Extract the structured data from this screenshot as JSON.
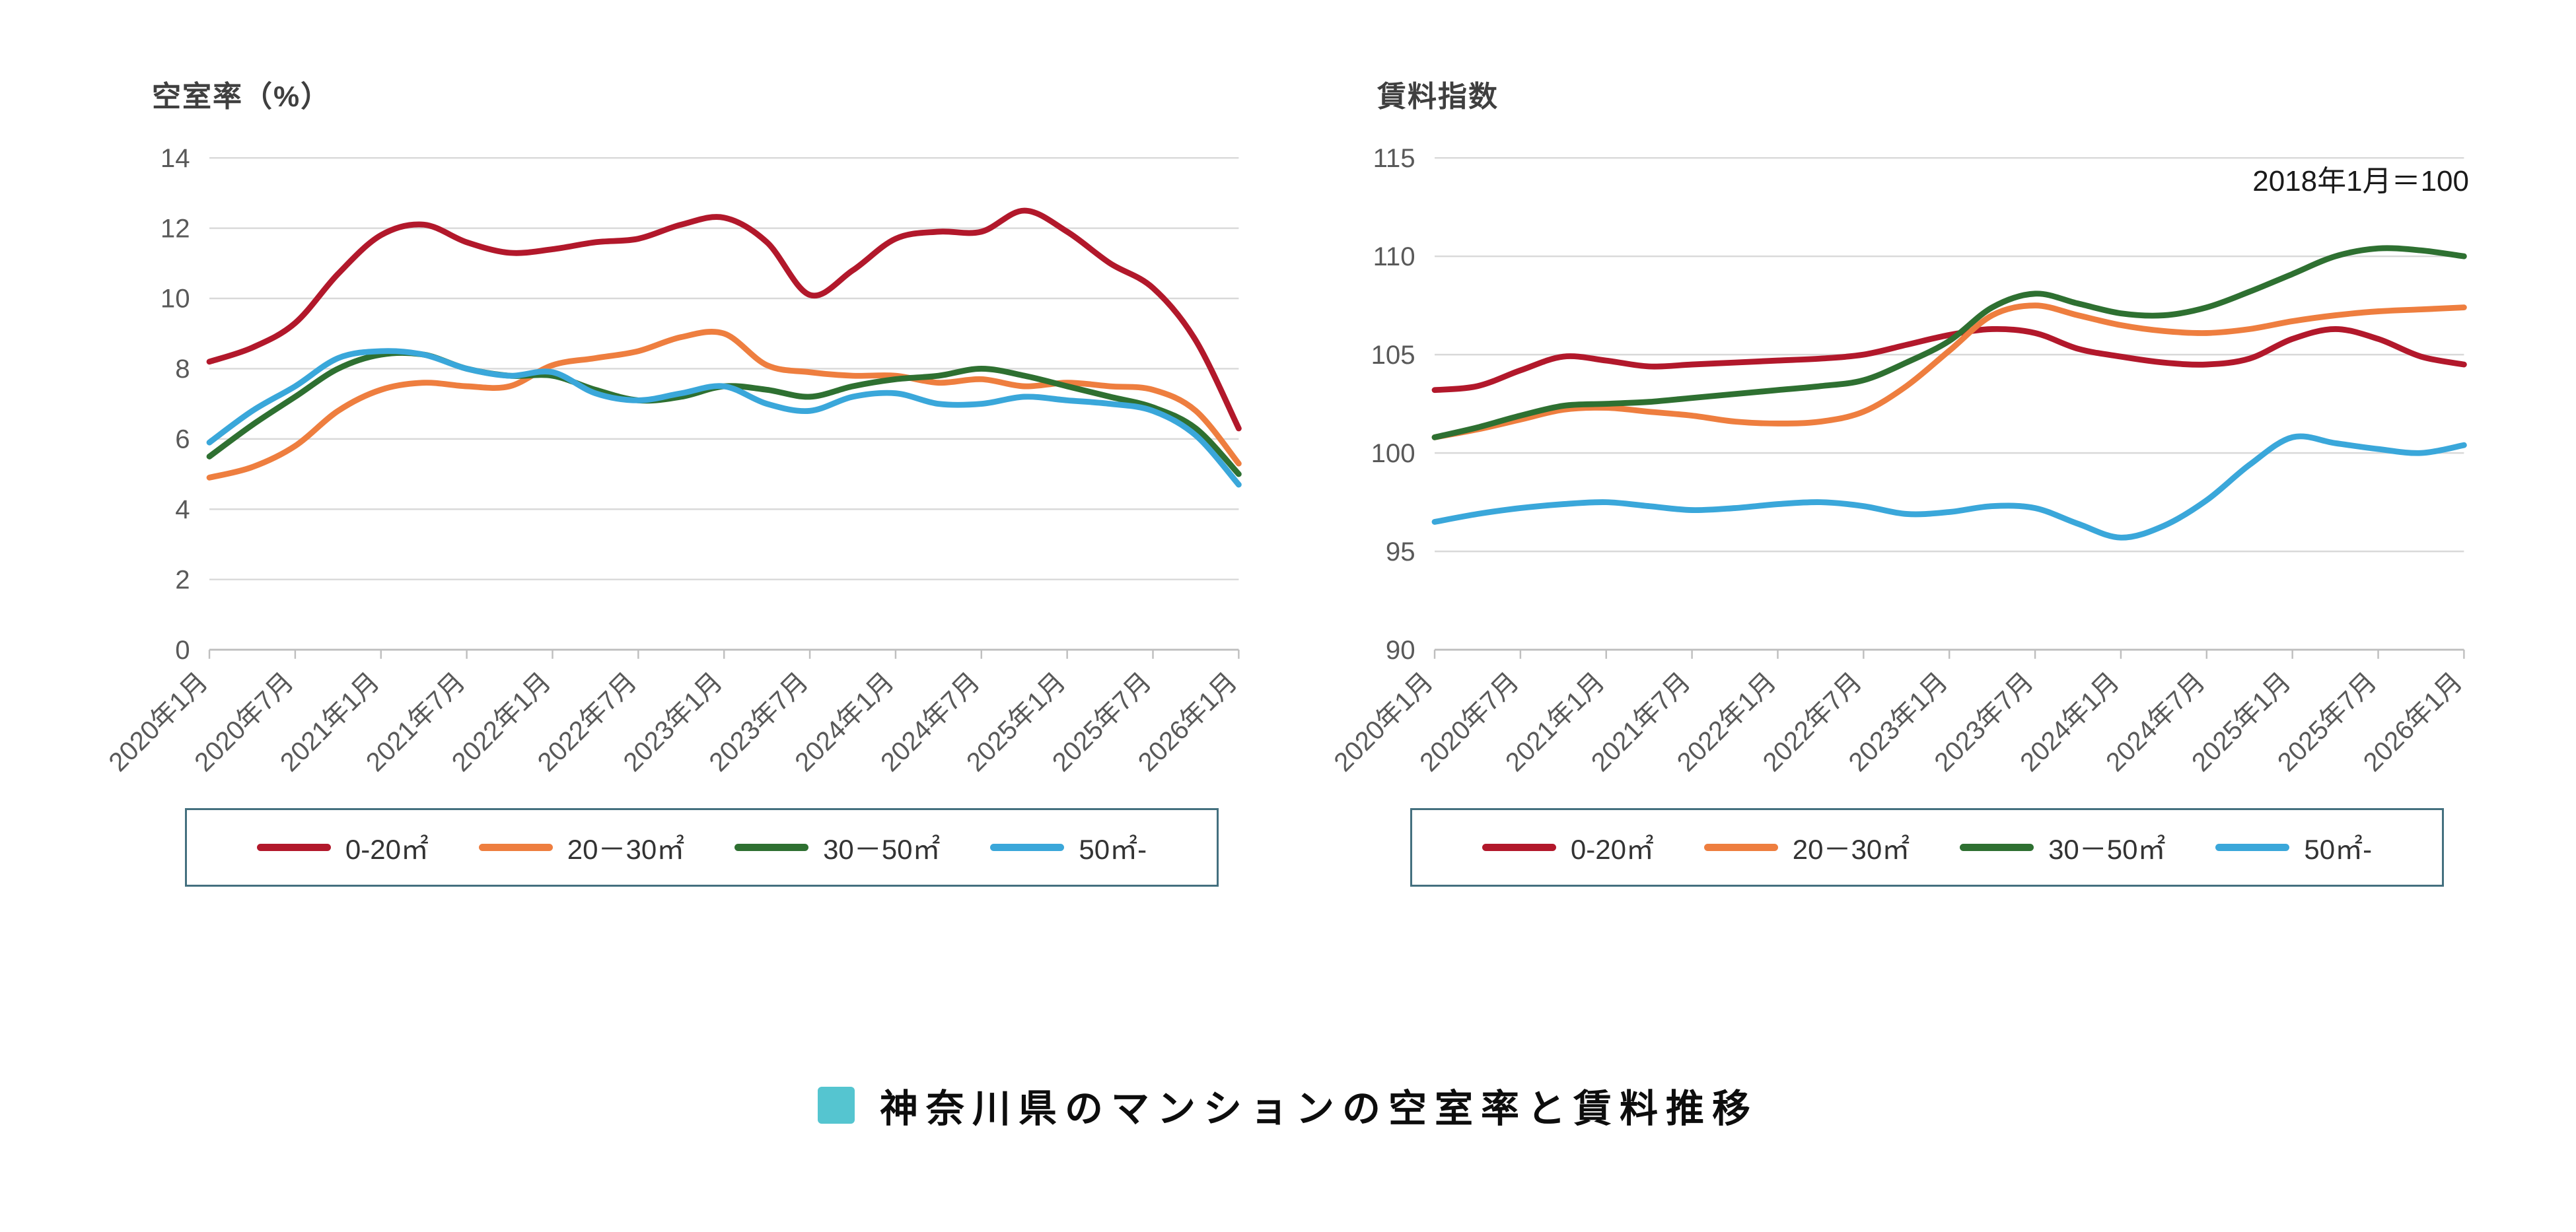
{
  "footer": {
    "title": "神奈川県のマンションの空室率と賃料推移"
  },
  "chart_data": [
    {
      "type": "line",
      "title": "空室率（%）",
      "xlabel": "",
      "ylabel": "空室率（%）",
      "ylim": [
        0,
        14
      ],
      "yticks": [
        0,
        2,
        4,
        6,
        8,
        10,
        12,
        14
      ],
      "grid": true,
      "legend_position": "bottom",
      "x_label_every": 2,
      "x_labels": [
        "2020年1月",
        "2020年7月",
        "2021年1月",
        "2021年7月",
        "2022年1月",
        "2022年7月",
        "2023年1月",
        "2023年7月",
        "2024年1月",
        "2024年7月",
        "2025年1月",
        "2025年7月",
        "2026年1月"
      ],
      "x_note": "values sampled quarterly from 2020年1月 to 2026年1月",
      "series": [
        {
          "name": "0-20㎡",
          "color": "#b2182b",
          "values": [
            8.2,
            8.6,
            9.3,
            10.7,
            11.8,
            12.1,
            11.6,
            11.3,
            11.4,
            11.6,
            11.7,
            12.1,
            12.3,
            11.6,
            10.1,
            10.8,
            11.7,
            11.9,
            11.9,
            12.5,
            11.9,
            11.0,
            10.3,
            8.8,
            6.3
          ]
        },
        {
          "name": "20－30㎡",
          "color": "#ee7e3f",
          "values": [
            4.9,
            5.2,
            5.8,
            6.8,
            7.4,
            7.6,
            7.5,
            7.5,
            8.1,
            8.3,
            8.5,
            8.9,
            9.0,
            8.1,
            7.9,
            7.8,
            7.8,
            7.6,
            7.7,
            7.5,
            7.6,
            7.5,
            7.4,
            6.8,
            5.3
          ]
        },
        {
          "name": "30－50㎡",
          "color": "#2e7031",
          "values": [
            5.5,
            6.4,
            7.2,
            8.0,
            8.4,
            8.4,
            8.0,
            7.8,
            7.8,
            7.4,
            7.1,
            7.2,
            7.5,
            7.4,
            7.2,
            7.5,
            7.7,
            7.8,
            8.0,
            7.8,
            7.5,
            7.2,
            6.9,
            6.3,
            5.0
          ]
        },
        {
          "name": "50㎡-",
          "color": "#3aa7da",
          "values": [
            5.9,
            6.8,
            7.5,
            8.3,
            8.5,
            8.4,
            8.0,
            7.8,
            7.9,
            7.3,
            7.1,
            7.3,
            7.5,
            7.0,
            6.8,
            7.2,
            7.3,
            7.0,
            7.0,
            7.2,
            7.1,
            7.0,
            6.8,
            6.1,
            4.7
          ]
        }
      ]
    },
    {
      "type": "line",
      "title": "賃料指数",
      "annotation": "2018年1月＝100",
      "xlabel": "",
      "ylabel": "賃料指数",
      "ylim": [
        90,
        115
      ],
      "yticks": [
        90,
        95,
        100,
        105,
        110,
        115
      ],
      "grid": true,
      "legend_position": "bottom",
      "x_label_every": 2,
      "x_labels": [
        "2020年1月",
        "2020年7月",
        "2021年1月",
        "2021年7月",
        "2022年1月",
        "2022年7月",
        "2023年1月",
        "2023年7月",
        "2024年1月",
        "2024年7月",
        "2025年1月",
        "2025年7月",
        "2026年1月"
      ],
      "x_note": "values sampled quarterly from 2020年1月 to 2026年1月",
      "series": [
        {
          "name": "0-20㎡",
          "color": "#b2182b",
          "values": [
            103.2,
            103.4,
            104.2,
            104.9,
            104.7,
            104.4,
            104.5,
            104.6,
            104.7,
            104.8,
            105.0,
            105.5,
            106.0,
            106.3,
            106.1,
            105.3,
            104.9,
            104.6,
            104.5,
            104.8,
            105.8,
            106.3,
            105.8,
            104.9,
            104.5
          ]
        },
        {
          "name": "20－30㎡",
          "color": "#ee7e3f",
          "values": [
            100.8,
            101.2,
            101.7,
            102.2,
            102.3,
            102.1,
            101.9,
            101.6,
            101.5,
            101.6,
            102.1,
            103.4,
            105.2,
            107.0,
            107.5,
            107.0,
            106.5,
            106.2,
            106.1,
            106.3,
            106.7,
            107.0,
            107.2,
            107.3,
            107.4
          ]
        },
        {
          "name": "30－50㎡",
          "color": "#2e7031",
          "values": [
            100.8,
            101.3,
            101.9,
            102.4,
            102.5,
            102.6,
            102.8,
            103.0,
            103.2,
            103.4,
            103.7,
            104.6,
            105.7,
            107.4,
            108.1,
            107.6,
            107.1,
            107.0,
            107.4,
            108.2,
            109.1,
            110.0,
            110.4,
            110.3,
            110.0
          ]
        },
        {
          "name": "50㎡-",
          "color": "#3aa7da",
          "values": [
            96.5,
            96.9,
            97.2,
            97.4,
            97.5,
            97.3,
            97.1,
            97.2,
            97.4,
            97.5,
            97.3,
            96.9,
            97.0,
            97.3,
            97.2,
            96.4,
            95.7,
            96.3,
            97.6,
            99.4,
            100.8,
            100.5,
            100.2,
            100.0,
            100.4
          ]
        }
      ]
    }
  ]
}
